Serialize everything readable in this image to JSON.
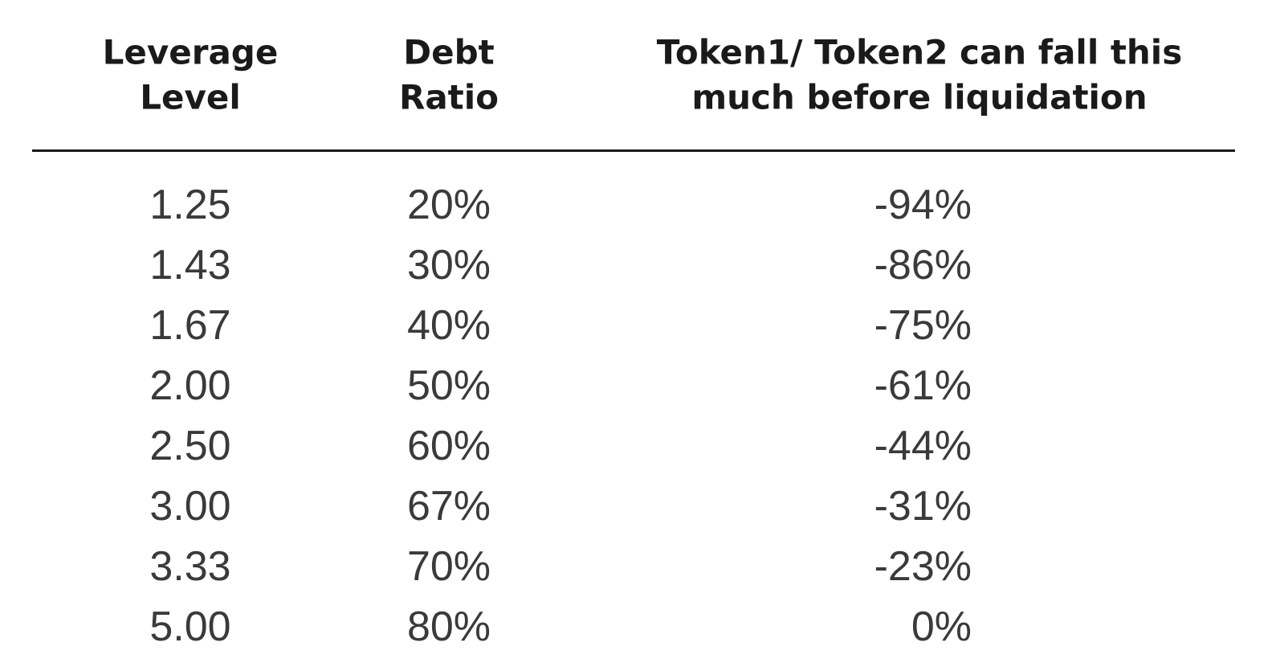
{
  "table": {
    "headers": [
      [
        "Leverage",
        "Level"
      ],
      [
        "Debt",
        "Ratio"
      ],
      [
        "Token1/ Token2 can fall this",
        "much before liquidation"
      ]
    ],
    "rows": [
      [
        "1.25",
        "20%",
        "-94%"
      ],
      [
        "1.43",
        "30%",
        "-86%"
      ],
      [
        "1.67",
        "40%",
        "-75%"
      ],
      [
        "2.00",
        "50%",
        "-61%"
      ],
      [
        "2.50",
        "60%",
        "-44%"
      ],
      [
        "3.00",
        "67%",
        "-31%"
      ],
      [
        "3.33",
        "70%",
        "-23%"
      ],
      [
        "5.00",
        "80%",
        "0%"
      ]
    ]
  }
}
